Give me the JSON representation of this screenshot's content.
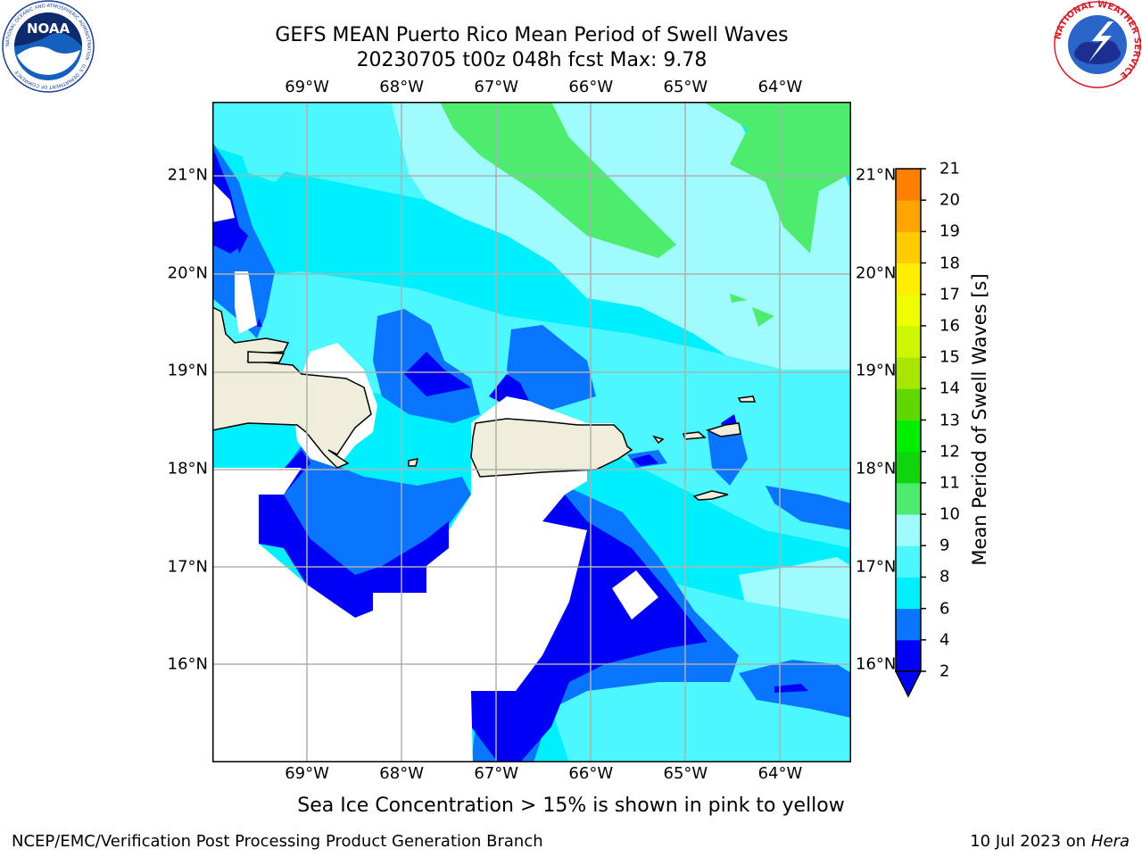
{
  "title_line1": "GEFS MEAN Puerto Rico Mean Period of Swell Waves",
  "title_line2": "20230705 t00z 048h fcst   Max: 9.78",
  "logos": {
    "left": {
      "name": "noaa-logo",
      "text": "NOAA",
      "ring_text": "NATIONAL OCEANIC AND ATMOSPHERIC ADMINISTRATION · U.S. DEPARTMENT OF COMMERCE"
    },
    "right": {
      "name": "nws-logo",
      "ring_text": "NATIONAL WEATHER SERVICE"
    }
  },
  "map": {
    "lon_range": [
      -70,
      -63.25
    ],
    "lat_range": [
      15,
      21.75
    ],
    "lon_ticks": [
      "69°W",
      "68°W",
      "67°W",
      "66°W",
      "65°W",
      "64°W"
    ],
    "lat_ticks": [
      "21°N",
      "20°N",
      "19°N",
      "18°N",
      "17°N",
      "16°N"
    ],
    "grid": true,
    "land_color": "#efeedc"
  },
  "colorbar": {
    "title": "Mean Period of Swell Waves [s]",
    "levels": [
      "2",
      "4",
      "6",
      "8",
      "9",
      "10",
      "11",
      "12",
      "13",
      "14",
      "15",
      "16",
      "17",
      "18",
      "19",
      "20",
      "21"
    ],
    "colors": [
      "#0000f5",
      "#0a75ff",
      "#00efff",
      "#4df7ff",
      "#a0fbff",
      "#4deb6e",
      "#10d40c",
      "#00ee00",
      "#5fd800",
      "#a8e600",
      "#ccf700",
      "#eeff00",
      "#ffee00",
      "#ffcc00",
      "#ffa400",
      "#ff7f00",
      "#ff5500",
      "#ff2a00",
      "#ff0000"
    ],
    "extend": "min"
  },
  "ice_note": "Sea Ice Concentration > 15% is shown in pink to yellow",
  "footer_left": "NCEP/EMC/Verification Post Processing Product Generation Branch",
  "footer_right_prefix": "10 Jul 2023 on ",
  "footer_right_host": "Hera"
}
